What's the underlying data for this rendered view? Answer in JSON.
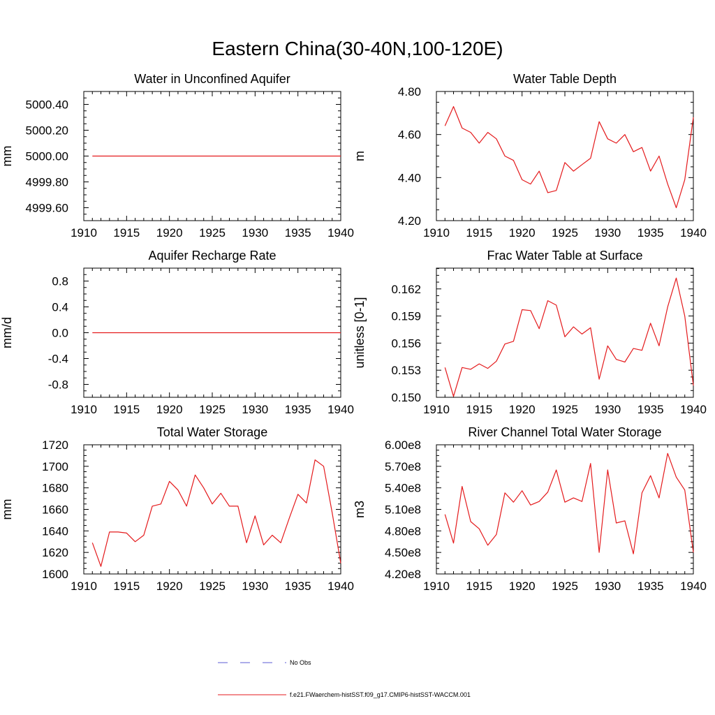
{
  "figure": {
    "title": "Eastern China(30-40N,100-120E)"
  },
  "legend": {
    "obs_label": "No Obs",
    "obs_color": "#5b5bd6",
    "model_label": "f.e21.FWaerchem-histSST.f09_g17.CMIP6-histSST-WACCM.001",
    "model_color": "#e41a1c"
  },
  "chart_data": [
    {
      "type": "line",
      "title": "Water in Unconfined Aquifer",
      "xlabel": "",
      "ylabel": "mm",
      "xlim": [
        1910,
        1940
      ],
      "ylim": [
        4999.5,
        5000.5
      ],
      "xticks": [
        1910,
        1915,
        1920,
        1925,
        1930,
        1935,
        1940
      ],
      "yticks": [
        4999.6,
        4999.8,
        5000.0,
        5000.2,
        5000.4
      ],
      "ytick_labels": [
        "4999.60",
        "4999.80",
        "5000.00",
        "5000.20",
        "5000.40"
      ],
      "x": [
        1911,
        1912,
        1913,
        1914,
        1915,
        1916,
        1917,
        1918,
        1919,
        1920,
        1921,
        1922,
        1923,
        1924,
        1925,
        1926,
        1927,
        1928,
        1929,
        1930,
        1931,
        1932,
        1933,
        1934,
        1935,
        1936,
        1937,
        1938,
        1939,
        1940
      ],
      "series": [
        {
          "values": [
            5000,
            5000,
            5000,
            5000,
            5000,
            5000,
            5000,
            5000,
            5000,
            5000,
            5000,
            5000,
            5000,
            5000,
            5000,
            5000,
            5000,
            5000,
            5000,
            5000,
            5000,
            5000,
            5000,
            5000,
            5000,
            5000,
            5000,
            5000,
            5000,
            5000
          ],
          "color": "#e41a1c"
        }
      ]
    },
    {
      "type": "line",
      "title": "Water Table Depth",
      "xlabel": "",
      "ylabel": "m",
      "xlim": [
        1910,
        1940
      ],
      "ylim": [
        4.2,
        4.8
      ],
      "xticks": [
        1910,
        1915,
        1920,
        1925,
        1930,
        1935,
        1940
      ],
      "yticks": [
        4.2,
        4.4,
        4.6,
        4.8
      ],
      "ytick_labels": [
        "4.20",
        "4.40",
        "4.60",
        "4.80"
      ],
      "x": [
        1911,
        1912,
        1913,
        1914,
        1915,
        1916,
        1917,
        1918,
        1919,
        1920,
        1921,
        1922,
        1923,
        1924,
        1925,
        1926,
        1927,
        1928,
        1929,
        1930,
        1931,
        1932,
        1933,
        1934,
        1935,
        1936,
        1937,
        1938,
        1939,
        1940
      ],
      "series": [
        {
          "values": [
            4.64,
            4.73,
            4.63,
            4.61,
            4.56,
            4.61,
            4.58,
            4.5,
            4.48,
            4.39,
            4.37,
            4.43,
            4.33,
            4.34,
            4.47,
            4.43,
            4.46,
            4.49,
            4.66,
            4.58,
            4.56,
            4.6,
            4.52,
            4.54,
            4.43,
            4.5,
            4.37,
            4.26,
            4.39,
            4.68
          ],
          "color": "#e41a1c"
        }
      ]
    },
    {
      "type": "line",
      "title": "Aquifer Recharge Rate",
      "xlabel": "",
      "ylabel": "mm/d",
      "xlim": [
        1910,
        1940
      ],
      "ylim": [
        -1.0,
        1.0
      ],
      "xticks": [
        1910,
        1915,
        1920,
        1925,
        1930,
        1935,
        1940
      ],
      "yticks": [
        -0.8,
        -0.4,
        0.0,
        0.4,
        0.8
      ],
      "ytick_labels": [
        "-0.8",
        "-0.4",
        "0.0",
        "0.4",
        "0.8"
      ],
      "x": [
        1911,
        1912,
        1913,
        1914,
        1915,
        1916,
        1917,
        1918,
        1919,
        1920,
        1921,
        1922,
        1923,
        1924,
        1925,
        1926,
        1927,
        1928,
        1929,
        1930,
        1931,
        1932,
        1933,
        1934,
        1935,
        1936,
        1937,
        1938,
        1939,
        1940
      ],
      "series": [
        {
          "values": [
            0,
            0,
            0,
            0,
            0,
            0,
            0,
            0,
            0,
            0,
            0,
            0,
            0,
            0,
            0,
            0,
            0,
            0,
            0,
            0,
            0,
            0,
            0,
            0,
            0,
            0,
            0,
            0,
            0,
            0
          ],
          "color": "#e41a1c"
        }
      ]
    },
    {
      "type": "line",
      "title": "Frac Water Table at Surface",
      "xlabel": "",
      "ylabel": "unitless [0-1]",
      "xlim": [
        1910,
        1940
      ],
      "ylim": [
        0.15,
        0.1643
      ],
      "xticks": [
        1910,
        1915,
        1920,
        1925,
        1930,
        1935,
        1940
      ],
      "yticks": [
        0.15,
        0.153,
        0.156,
        0.159,
        0.162
      ],
      "ytick_labels": [
        "0.150",
        "0.153",
        "0.156",
        "0.159",
        "0.162"
      ],
      "x": [
        1911,
        1912,
        1913,
        1914,
        1915,
        1916,
        1917,
        1918,
        1919,
        1920,
        1921,
        1922,
        1923,
        1924,
        1925,
        1926,
        1927,
        1928,
        1929,
        1930,
        1931,
        1932,
        1933,
        1934,
        1935,
        1936,
        1937,
        1938,
        1939,
        1940
      ],
      "series": [
        {
          "values": [
            0.1533,
            0.1501,
            0.1533,
            0.1531,
            0.1537,
            0.1532,
            0.154,
            0.1559,
            0.1562,
            0.1597,
            0.1596,
            0.1576,
            0.1607,
            0.1602,
            0.1567,
            0.1578,
            0.157,
            0.1577,
            0.152,
            0.1557,
            0.1542,
            0.1539,
            0.1554,
            0.1552,
            0.1582,
            0.1557,
            0.16,
            0.1632,
            0.159,
            0.1513
          ],
          "color": "#e41a1c"
        }
      ]
    },
    {
      "type": "line",
      "title": "Total Water Storage",
      "xlabel": "",
      "ylabel": "mm",
      "xlim": [
        1910,
        1940
      ],
      "ylim": [
        1600,
        1720
      ],
      "xticks": [
        1910,
        1915,
        1920,
        1925,
        1930,
        1935,
        1940
      ],
      "yticks": [
        1600,
        1620,
        1640,
        1660,
        1680,
        1700,
        1720
      ],
      "ytick_labels": [
        "1600",
        "1620",
        "1640",
        "1660",
        "1680",
        "1700",
        "1720"
      ],
      "x": [
        1911,
        1912,
        1913,
        1914,
        1915,
        1916,
        1917,
        1918,
        1919,
        1920,
        1921,
        1922,
        1923,
        1924,
        1925,
        1926,
        1927,
        1928,
        1929,
        1930,
        1931,
        1932,
        1933,
        1934,
        1935,
        1936,
        1937,
        1938,
        1939,
        1940
      ],
      "series": [
        {
          "values": [
            1629,
            1607,
            1639,
            1639,
            1638,
            1630,
            1636,
            1663,
            1665,
            1686,
            1678,
            1663,
            1692,
            1680,
            1665,
            1675,
            1663,
            1663,
            1629,
            1654,
            1627,
            1636,
            1629,
            1652,
            1674,
            1666,
            1706,
            1700,
            1657,
            1610
          ],
          "color": "#e41a1c"
        }
      ]
    },
    {
      "type": "line",
      "title": "River Channel Total Water Storage",
      "xlabel": "",
      "ylabel": "m3",
      "xlim": [
        1910,
        1940
      ],
      "ylim": [
        420000000.0,
        600000000.0
      ],
      "xticks": [
        1910,
        1915,
        1920,
        1925,
        1930,
        1935,
        1940
      ],
      "yticks": [
        420000000.0,
        450000000.0,
        480000000.0,
        510000000.0,
        540000000.0,
        570000000.0,
        600000000.0
      ],
      "ytick_labels": [
        "4.20e8",
        "4.50e8",
        "4.80e8",
        "5.10e8",
        "5.40e8",
        "5.70e8",
        "6.00e8"
      ],
      "x": [
        1911,
        1912,
        1913,
        1914,
        1915,
        1916,
        1917,
        1918,
        1919,
        1920,
        1921,
        1922,
        1923,
        1924,
        1925,
        1926,
        1927,
        1928,
        1929,
        1930,
        1931,
        1932,
        1933,
        1934,
        1935,
        1936,
        1937,
        1938,
        1939,
        1940
      ],
      "series": [
        {
          "values": [
            503000000.0,
            463000000.0,
            542000000.0,
            493000000.0,
            483000000.0,
            460000000.0,
            475000000.0,
            533000000.0,
            520000000.0,
            536000000.0,
            516000000.0,
            521000000.0,
            534000000.0,
            565000000.0,
            520000000.0,
            526000000.0,
            521000000.0,
            574000000.0,
            450000000.0,
            565000000.0,
            491000000.0,
            494000000.0,
            448000000.0,
            533000000.0,
            557000000.0,
            526000000.0,
            588000000.0,
            555000000.0,
            537000000.0,
            450000000.0
          ],
          "color": "#e41a1c"
        }
      ]
    }
  ]
}
